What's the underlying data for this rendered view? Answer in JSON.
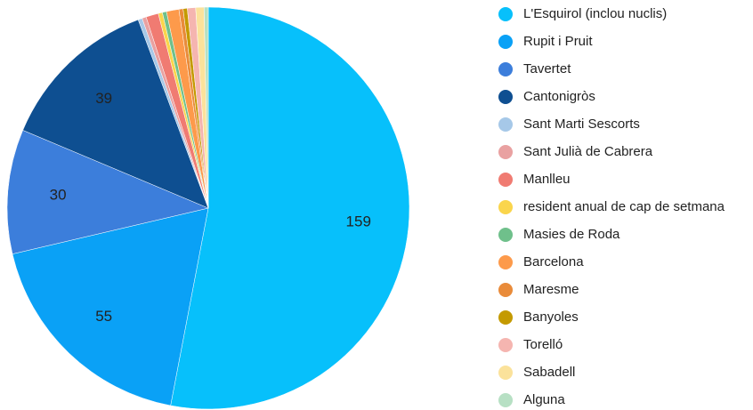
{
  "chart_data": {
    "type": "pie",
    "categories": [
      "L'Esquirol (inclou nuclis)",
      "Rupit i Pruit",
      "Tavertet",
      "Cantonigròs",
      "Sant Marti Sescorts",
      "Sant Julià de Cabrera",
      "Manlleu",
      "resident anual de cap de setmana",
      "Masies de Roda",
      "Barcelona",
      "Maresme",
      "Banyoles",
      "Torelló",
      "Sabadell",
      "Alguna"
    ],
    "values": [
      159,
      55,
      30,
      39,
      1,
      1,
      3,
      1,
      1,
      3,
      1,
      1,
      2,
      2,
      1
    ],
    "colors": [
      "#07c0fb",
      "#0aa1f6",
      "#3c7edb",
      "#0e4f91",
      "#a6c8e8",
      "#e9a1a1",
      "#f07b72",
      "#fad54c",
      "#6fc08b",
      "#fd9a4b",
      "#e98b3a",
      "#c49a00",
      "#f5b5b0",
      "#fbe29b",
      "#b7e0c4"
    ],
    "legend": "right"
  }
}
